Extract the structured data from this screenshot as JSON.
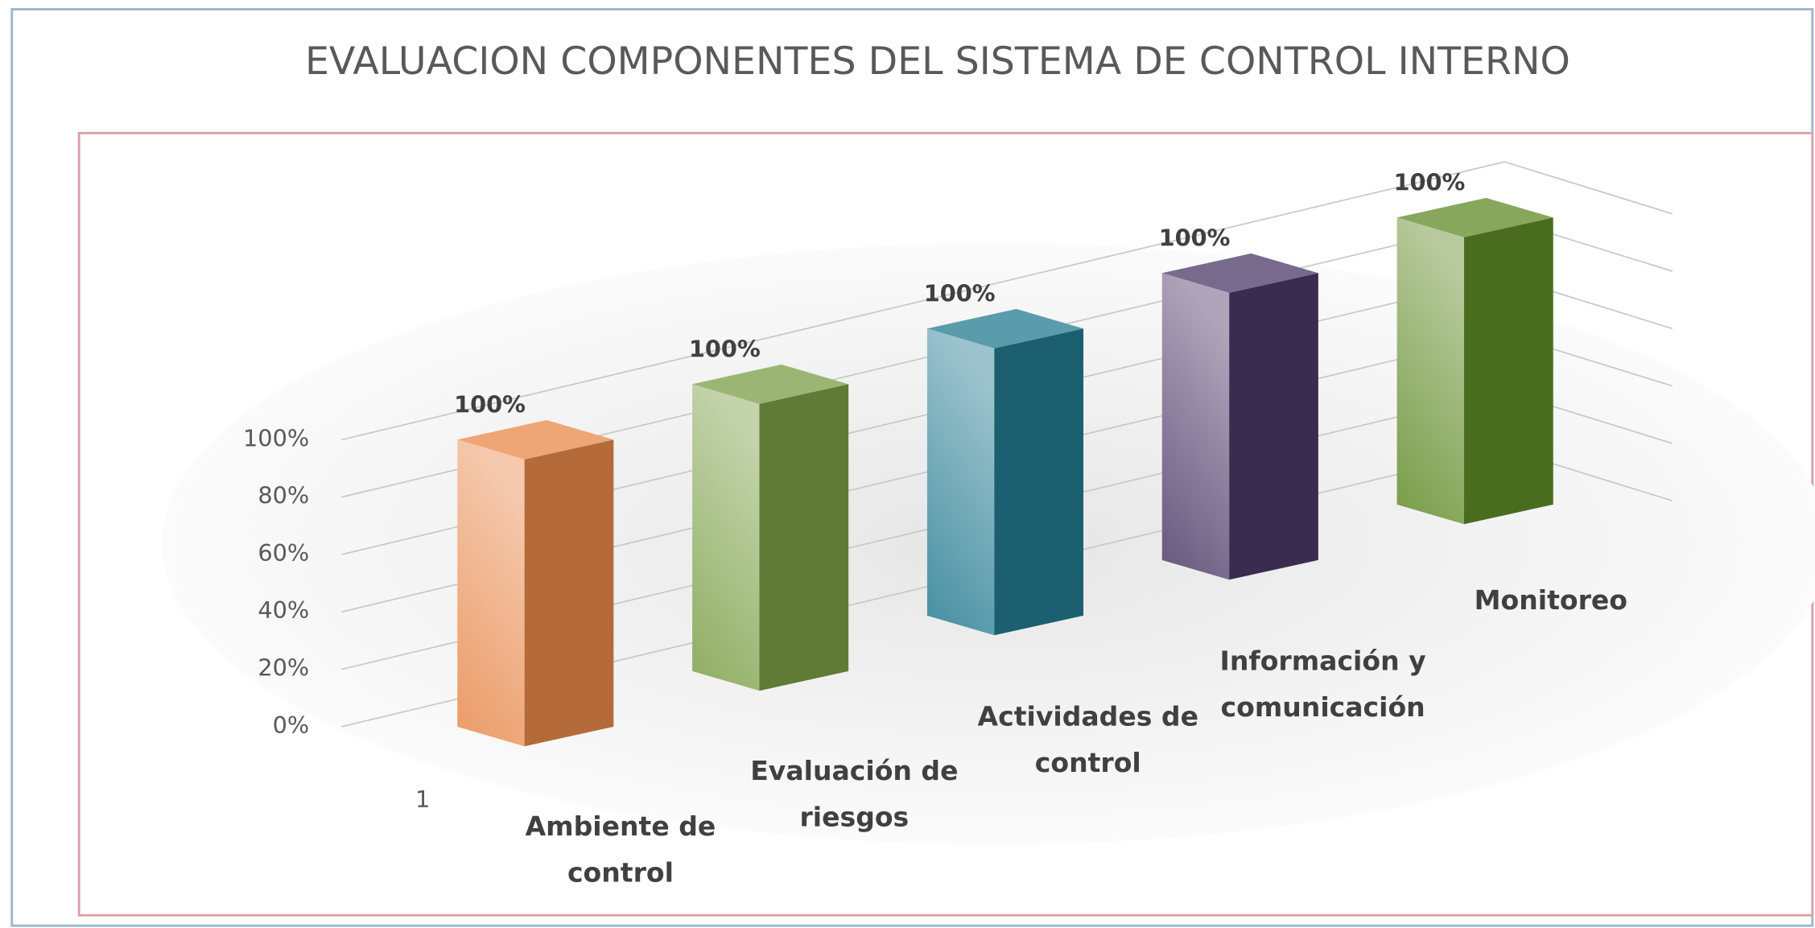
{
  "chart_data": {
    "type": "bar3d",
    "title": "EVALUACION COMPONENTES DEL SISTEMA DE CONTROL INTERNO",
    "categories": [
      "1"
    ],
    "series": [
      {
        "name": "Ambiente de control",
        "color": "#e8884a",
        "values": [
          100
        ],
        "value_labels": [
          "100%"
        ]
      },
      {
        "name": "Evaluación de riesgos",
        "color": "#7a9e45",
        "values": [
          100
        ],
        "value_labels": [
          "100%"
        ]
      },
      {
        "name": "Actividades de control",
        "color": "#237a90",
        "values": [
          100
        ],
        "value_labels": [
          "100%"
        ]
      },
      {
        "name": "Información y comunicación",
        "color": "#4a3866",
        "values": [
          100
        ],
        "value_labels": [
          "100%"
        ]
      },
      {
        "name": "Monitoreo",
        "color": "#5f8a26",
        "values": [
          100
        ],
        "value_labels": [
          "100%"
        ]
      }
    ],
    "ylim": [
      0,
      100
    ],
    "yticks": [
      {
        "value": 0,
        "label": "0%"
      },
      {
        "value": 20,
        "label": "20%"
      },
      {
        "value": 40,
        "label": "40%"
      },
      {
        "value": 60,
        "label": "60%"
      },
      {
        "value": 80,
        "label": "80%"
      },
      {
        "value": 100,
        "label": "100%"
      }
    ],
    "grid": true
  }
}
